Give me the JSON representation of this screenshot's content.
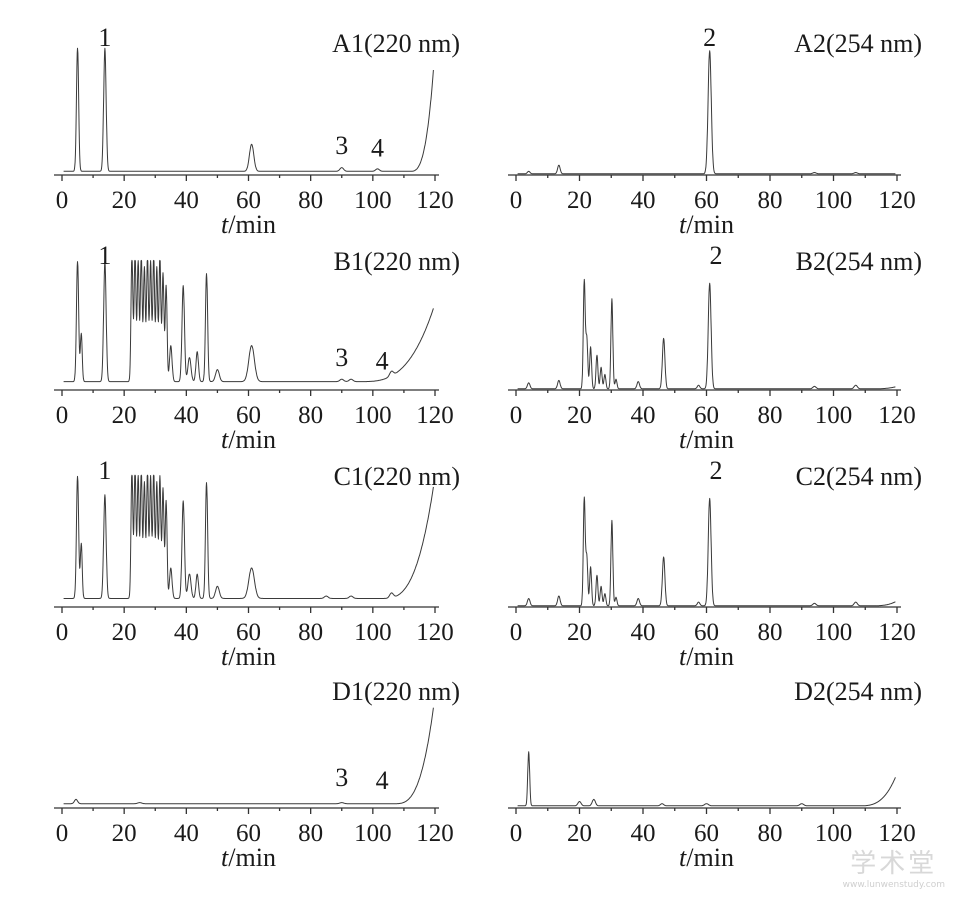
{
  "chart_data": [
    {
      "id": "A1",
      "type": "line",
      "title": "A1(220 nm)",
      "xlabel": {
        "t": "t",
        "u": "/min"
      },
      "xlim": [
        0,
        120
      ],
      "xticks": [
        0,
        20,
        40,
        60,
        80,
        100,
        120
      ],
      "baseline": 3,
      "peaks": [
        {
          "x": 5,
          "h": 100,
          "w": 0.35
        },
        {
          "x": 13.8,
          "h": 100,
          "w": 0.4
        },
        {
          "x": 61,
          "h": 22,
          "w": 0.7
        },
        {
          "x": 90,
          "h": 3,
          "w": 0.6
        },
        {
          "x": 101.5,
          "h": 2,
          "w": 0.6
        }
      ],
      "rise": {
        "start": 112,
        "end": 120,
        "to": 100
      },
      "labels": [
        {
          "text": "1",
          "x": 13.8,
          "y": 100
        },
        {
          "text": "3",
          "x": 90,
          "y": 12
        },
        {
          "text": "4",
          "x": 101.5,
          "y": 10
        }
      ]
    },
    {
      "id": "A2",
      "type": "line",
      "title": "A2(254 nm)",
      "xlabel": {
        "t": "t",
        "u": "/min"
      },
      "xlim": [
        0,
        120
      ],
      "xticks": [
        0,
        20,
        40,
        60,
        80,
        100,
        120
      ],
      "baseline": 1,
      "peaks": [
        {
          "x": 4,
          "h": 2,
          "w": 0.4
        },
        {
          "x": 13.5,
          "h": 7,
          "w": 0.4
        },
        {
          "x": 61,
          "h": 100,
          "w": 0.5
        },
        {
          "x": 94,
          "h": 1,
          "w": 0.5
        },
        {
          "x": 107,
          "h": 1,
          "w": 0.5
        }
      ],
      "rise": null,
      "labels": [
        {
          "text": "2",
          "x": 61,
          "y": 100
        }
      ]
    },
    {
      "id": "B1",
      "type": "line",
      "title": "B1(220 nm)",
      "xlabel": {
        "t": "t",
        "u": "/min"
      },
      "xlim": [
        0,
        120
      ],
      "xticks": [
        0,
        20,
        40,
        60,
        80,
        100,
        120
      ],
      "baseline": 7,
      "peaks": [
        {
          "x": 5,
          "h": 100,
          "w": 0.35
        },
        {
          "x": 6.2,
          "h": 40,
          "w": 0.3
        },
        {
          "x": 13.8,
          "h": 100,
          "w": 0.4
        },
        {
          "x": 22.5,
          "h": 105,
          "w": 0.3
        },
        {
          "x": 23.5,
          "h": 105,
          "w": 0.3
        },
        {
          "x": 24.5,
          "h": 100,
          "w": 0.3
        },
        {
          "x": 25.5,
          "h": 105,
          "w": 0.3
        },
        {
          "x": 26.5,
          "h": 95,
          "w": 0.3
        },
        {
          "x": 27.5,
          "h": 105,
          "w": 0.3
        },
        {
          "x": 28.5,
          "h": 100,
          "w": 0.3
        },
        {
          "x": 29.5,
          "h": 105,
          "w": 0.3
        },
        {
          "x": 30.5,
          "h": 95,
          "w": 0.3
        },
        {
          "x": 31.5,
          "h": 105,
          "w": 0.3
        },
        {
          "x": 32.5,
          "h": 90,
          "w": 0.3
        },
        {
          "x": 33.5,
          "h": 80,
          "w": 0.3
        },
        {
          "x": 35,
          "h": 30,
          "w": 0.4
        },
        {
          "x": 39,
          "h": 80,
          "w": 0.4
        },
        {
          "x": 41,
          "h": 20,
          "w": 0.5
        },
        {
          "x": 43.5,
          "h": 25,
          "w": 0.4
        },
        {
          "x": 46.5,
          "h": 90,
          "w": 0.35
        },
        {
          "x": 50,
          "h": 10,
          "w": 0.6
        },
        {
          "x": 61,
          "h": 30,
          "w": 0.9
        },
        {
          "x": 90,
          "h": 2,
          "w": 0.6
        },
        {
          "x": 93,
          "h": 2,
          "w": 0.6
        },
        {
          "x": 106,
          "h": 4,
          "w": 0.6
        }
      ],
      "rise": {
        "start": 96,
        "end": 120,
        "to": 65
      },
      "labels": [
        {
          "text": "1",
          "x": 13.8,
          "y": 100
        },
        {
          "text": "3",
          "x": 90,
          "y": 15
        },
        {
          "text": "4",
          "x": 103,
          "y": 12
        }
      ]
    },
    {
      "id": "B2",
      "type": "line",
      "title": "B2(254 nm)",
      "xlabel": {
        "t": "t",
        "u": "/min"
      },
      "xlim": [
        0,
        120
      ],
      "xticks": [
        0,
        20,
        40,
        60,
        80,
        100,
        120
      ],
      "baseline": 1,
      "peaks": [
        {
          "x": 4,
          "h": 5,
          "w": 0.4
        },
        {
          "x": 13.5,
          "h": 7,
          "w": 0.4
        },
        {
          "x": 21.5,
          "h": 90,
          "w": 0.3
        },
        {
          "x": 22.3,
          "h": 42,
          "w": 0.3
        },
        {
          "x": 23.5,
          "h": 35,
          "w": 0.3
        },
        {
          "x": 25.5,
          "h": 28,
          "w": 0.3
        },
        {
          "x": 26.8,
          "h": 18,
          "w": 0.3
        },
        {
          "x": 28,
          "h": 12,
          "w": 0.3
        },
        {
          "x": 30.2,
          "h": 75,
          "w": 0.3
        },
        {
          "x": 31.5,
          "h": 8,
          "w": 0.3
        },
        {
          "x": 38.5,
          "h": 6,
          "w": 0.4
        },
        {
          "x": 46.5,
          "h": 42,
          "w": 0.4
        },
        {
          "x": 57.5,
          "h": 3,
          "w": 0.4
        },
        {
          "x": 61,
          "h": 88,
          "w": 0.45
        },
        {
          "x": 94,
          "h": 2,
          "w": 0.5
        },
        {
          "x": 107,
          "h": 3,
          "w": 0.5
        }
      ],
      "rise": {
        "start": 112,
        "end": 120,
        "to": 2
      },
      "labels": [
        {
          "text": "2",
          "x": 63,
          "y": 100
        }
      ]
    },
    {
      "id": "C1",
      "type": "line",
      "title": "C1(220 nm)",
      "xlabel": {
        "t": "t",
        "u": "/min"
      },
      "xlim": [
        0,
        120
      ],
      "xticks": [
        0,
        20,
        40,
        60,
        80,
        100,
        120
      ],
      "baseline": 7,
      "peaks": [
        {
          "x": 5,
          "h": 100,
          "w": 0.35
        },
        {
          "x": 6.2,
          "h": 45,
          "w": 0.3
        },
        {
          "x": 13.8,
          "h": 85,
          "w": 0.4
        },
        {
          "x": 22.5,
          "h": 105,
          "w": 0.3
        },
        {
          "x": 23.5,
          "h": 105,
          "w": 0.3
        },
        {
          "x": 24.5,
          "h": 100,
          "w": 0.3
        },
        {
          "x": 25.5,
          "h": 105,
          "w": 0.3
        },
        {
          "x": 26.5,
          "h": 95,
          "w": 0.3
        },
        {
          "x": 27.5,
          "h": 105,
          "w": 0.3
        },
        {
          "x": 28.5,
          "h": 100,
          "w": 0.3
        },
        {
          "x": 29.5,
          "h": 105,
          "w": 0.3
        },
        {
          "x": 30.5,
          "h": 95,
          "w": 0.3
        },
        {
          "x": 31.5,
          "h": 100,
          "w": 0.3
        },
        {
          "x": 32.5,
          "h": 90,
          "w": 0.3
        },
        {
          "x": 33.5,
          "h": 80,
          "w": 0.3
        },
        {
          "x": 35,
          "h": 25,
          "w": 0.4
        },
        {
          "x": 39,
          "h": 80,
          "w": 0.4
        },
        {
          "x": 41,
          "h": 20,
          "w": 0.5
        },
        {
          "x": 43.5,
          "h": 20,
          "w": 0.4
        },
        {
          "x": 46.5,
          "h": 95,
          "w": 0.35
        },
        {
          "x": 50,
          "h": 10,
          "w": 0.6
        },
        {
          "x": 61,
          "h": 25,
          "w": 0.9
        },
        {
          "x": 85,
          "h": 2,
          "w": 0.6
        },
        {
          "x": 93,
          "h": 2,
          "w": 0.6
        },
        {
          "x": 106,
          "h": 4,
          "w": 0.6
        }
      ],
      "rise": {
        "start": 103,
        "end": 120,
        "to": 100
      },
      "labels": [
        {
          "text": "1",
          "x": 13.8,
          "y": 100
        }
      ]
    },
    {
      "id": "C2",
      "type": "line",
      "title": "C2(254 nm)",
      "xlabel": {
        "t": "t",
        "u": "/min"
      },
      "xlim": [
        0,
        120
      ],
      "xticks": [
        0,
        20,
        40,
        60,
        80,
        100,
        120
      ],
      "baseline": 1,
      "peaks": [
        {
          "x": 4,
          "h": 6,
          "w": 0.4
        },
        {
          "x": 13.5,
          "h": 8,
          "w": 0.4
        },
        {
          "x": 21.5,
          "h": 88,
          "w": 0.3
        },
        {
          "x": 22.3,
          "h": 40,
          "w": 0.3
        },
        {
          "x": 23.5,
          "h": 32,
          "w": 0.3
        },
        {
          "x": 25.5,
          "h": 25,
          "w": 0.3
        },
        {
          "x": 26.8,
          "h": 16,
          "w": 0.3
        },
        {
          "x": 28,
          "h": 10,
          "w": 0.3
        },
        {
          "x": 30.2,
          "h": 70,
          "w": 0.3
        },
        {
          "x": 31.5,
          "h": 7,
          "w": 0.3
        },
        {
          "x": 38.5,
          "h": 6,
          "w": 0.4
        },
        {
          "x": 46.5,
          "h": 40,
          "w": 0.4
        },
        {
          "x": 57.5,
          "h": 3,
          "w": 0.4
        },
        {
          "x": 61,
          "h": 88,
          "w": 0.45
        },
        {
          "x": 94,
          "h": 2,
          "w": 0.5
        },
        {
          "x": 107,
          "h": 3,
          "w": 0.5
        }
      ],
      "rise": {
        "start": 112,
        "end": 120,
        "to": 4
      },
      "labels": [
        {
          "text": "2",
          "x": 63,
          "y": 100
        }
      ]
    },
    {
      "id": "D1",
      "type": "line",
      "title": "D1(220 nm)",
      "xlabel": {
        "t": "t",
        "u": "/min"
      },
      "xlim": [
        0,
        120
      ],
      "xticks": [
        0,
        20,
        40,
        60,
        80,
        100,
        120
      ],
      "baseline": 4,
      "peaks": [
        {
          "x": 4.5,
          "h": 4,
          "w": 0.5
        },
        {
          "x": 25,
          "h": 1,
          "w": 0.6
        },
        {
          "x": 90,
          "h": 1,
          "w": 0.6
        }
      ],
      "rise": {
        "start": 107,
        "end": 120,
        "to": 100
      },
      "labels": [
        {
          "text": "3",
          "x": 90,
          "y": 15
        },
        {
          "text": "4",
          "x": 103,
          "y": 12
        }
      ]
    },
    {
      "id": "D2",
      "type": "line",
      "title": "D2(254 nm)",
      "xlabel": {
        "t": "t",
        "u": "/min"
      },
      "xlim": [
        0,
        120
      ],
      "xticks": [
        0,
        20,
        40,
        60,
        80,
        100,
        120
      ],
      "baseline": 2,
      "peaks": [
        {
          "x": 4,
          "h": 50,
          "w": 0.3
        },
        {
          "x": 20,
          "h": 4,
          "w": 0.5
        },
        {
          "x": 24.5,
          "h": 6,
          "w": 0.5
        },
        {
          "x": 46,
          "h": 2,
          "w": 0.5
        },
        {
          "x": 60,
          "h": 2,
          "w": 0.6
        },
        {
          "x": 90,
          "h": 2,
          "w": 0.6
        }
      ],
      "rise": {
        "start": 108,
        "end": 120,
        "to": 30
      },
      "labels": []
    }
  ],
  "watermark": {
    "main": "学术堂",
    "sub": "www.lunwenstudy.com"
  }
}
